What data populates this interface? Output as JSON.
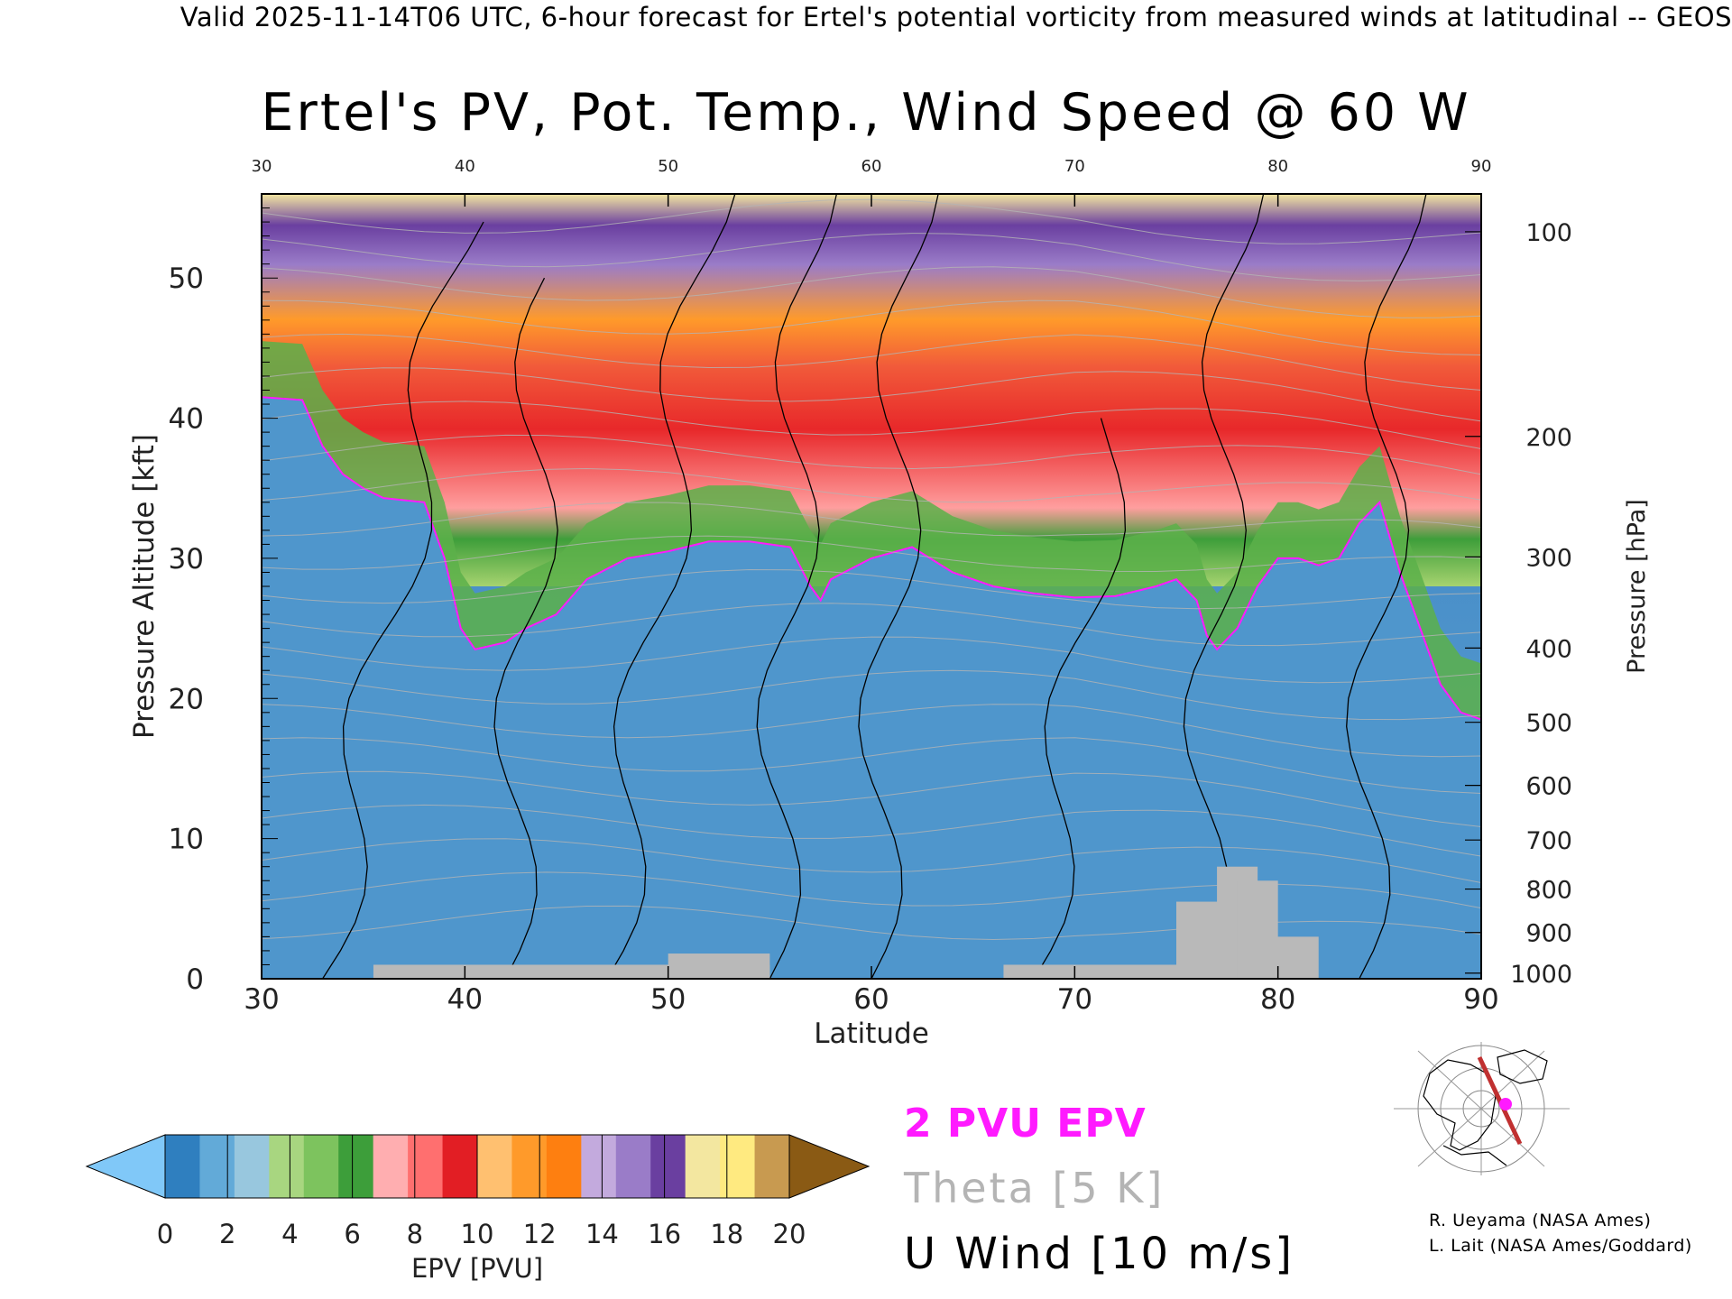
{
  "header": {
    "banner": "Valid 2025-11-14T06 UTC, 6-hour forecast for Ertel's potential vorticity from measured winds at latitudinal -- GEOS"
  },
  "chart_data": {
    "type": "heatmap",
    "title": "Ertel's PV, Pot. Temp., Wind Speed @ 60 W",
    "xlabel": "Latitude",
    "ylabel": "Pressure Altitude [kft]",
    "y2label": "Pressure [hPa]",
    "xlim": [
      30,
      90
    ],
    "ylim": [
      0,
      56
    ],
    "x_ticks": [
      30,
      40,
      50,
      60,
      70,
      80,
      90
    ],
    "y_ticks": [
      0,
      10,
      20,
      30,
      40,
      50
    ],
    "pressure_ticks": [
      {
        "hpa": "100",
        "kft": 53.3
      },
      {
        "hpa": "200",
        "kft": 38.7
      },
      {
        "hpa": "300",
        "kft": 30.1
      },
      {
        "hpa": "400",
        "kft": 23.6
      },
      {
        "hpa": "500",
        "kft": 18.3
      },
      {
        "hpa": "600",
        "kft": 13.8
      },
      {
        "hpa": "700",
        "kft": 9.9
      },
      {
        "hpa": "800",
        "kft": 6.4
      },
      {
        "hpa": "900",
        "kft": 3.3
      },
      {
        "hpa": "1000",
        "kft": 0.4
      }
    ],
    "tropopause_2pvu": [
      [
        30,
        41.5
      ],
      [
        32,
        41.3
      ],
      [
        33,
        38
      ],
      [
        34,
        36
      ],
      [
        35,
        35
      ],
      [
        36,
        34.3
      ],
      [
        38,
        34
      ],
      [
        39,
        30
      ],
      [
        39.8,
        25
      ],
      [
        40.5,
        23.5
      ],
      [
        42,
        24
      ],
      [
        43,
        25
      ],
      [
        44.5,
        26
      ],
      [
        46,
        28.5
      ],
      [
        48,
        30
      ],
      [
        50,
        30.5
      ],
      [
        52,
        31.2
      ],
      [
        54,
        31.2
      ],
      [
        56,
        30.8
      ],
      [
        57,
        28
      ],
      [
        57.5,
        27
      ],
      [
        58,
        28.5
      ],
      [
        60,
        30
      ],
      [
        62,
        30.8
      ],
      [
        64,
        29
      ],
      [
        66,
        28
      ],
      [
        68,
        27.5
      ],
      [
        70,
        27.2
      ],
      [
        72,
        27.3
      ],
      [
        74,
        28
      ],
      [
        75,
        28.5
      ],
      [
        76,
        27
      ],
      [
        76.5,
        24.5
      ],
      [
        77,
        23.5
      ],
      [
        78,
        25
      ],
      [
        79,
        28
      ],
      [
        80,
        30
      ],
      [
        81,
        30
      ],
      [
        82,
        29.5
      ],
      [
        83,
        30
      ],
      [
        84,
        32.5
      ],
      [
        85,
        34
      ],
      [
        86,
        29
      ],
      [
        87,
        25
      ],
      [
        88,
        21
      ],
      [
        89,
        19
      ],
      [
        90,
        18.5
      ]
    ],
    "colorbar": {
      "label": "EPV [PVU]",
      "ticks": [
        "0",
        "2",
        "4",
        "6",
        "8",
        "10",
        "12",
        "14",
        "16",
        "18",
        "20"
      ],
      "colors": [
        "#2f7fbf",
        "#62aad8",
        "#98c7de",
        "#a8d680",
        "#7dc35e",
        "#3d9e3a",
        "#ffaeb0",
        "#ff6f6f",
        "#e21e24",
        "#ffc070",
        "#ff9a2a",
        "#fe7f10",
        "#c3aadd",
        "#9a7cc8",
        "#6a3fa0",
        "#f3e7a0",
        "#ffea80",
        "#c89a50"
      ],
      "under_color": "#80c8f8",
      "over_color": "#8a5a14"
    },
    "legend": [
      {
        "label": "2 PVU EPV",
        "color": "#ff1aff"
      },
      {
        "label": "Theta [5 K]",
        "color": "#b4b4b4"
      },
      {
        "label": "U Wind [10 m/s]",
        "color": "#000000"
      }
    ]
  },
  "credits": {
    "line1": "R. Ueyama (NASA Ames)",
    "line2": "L. Lait (NASA Ames/Goddard)"
  }
}
